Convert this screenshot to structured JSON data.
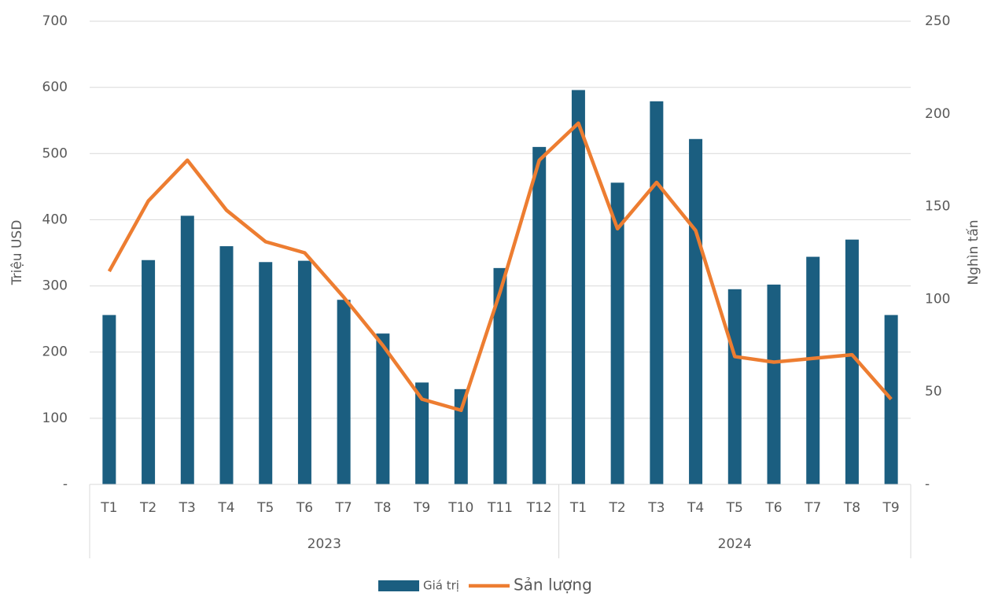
{
  "chart_data": {
    "type": "bar_line",
    "categories": [
      "T1",
      "T2",
      "T3",
      "T4",
      "T5",
      "T6",
      "T7",
      "T8",
      "T9",
      "T10",
      "T11",
      "T12",
      "T1",
      "T2",
      "T3",
      "T4",
      "T5",
      "T6",
      "T7",
      "T8",
      "T9"
    ],
    "groups": [
      {
        "label": "2023",
        "size": 12
      },
      {
        "label": "2024",
        "size": 9
      }
    ],
    "ylabel": "Triệu USD",
    "y2label": "Nghìn tấn",
    "ylim": [
      0,
      700
    ],
    "yticks": [
      {
        "value": 0,
        "label": "-"
      },
      100,
      200,
      300,
      400,
      500,
      600,
      700
    ],
    "y2lim": [
      0,
      250
    ],
    "y2ticks": [
      {
        "value": 0,
        "label": "-"
      },
      50,
      100,
      150,
      200,
      250
    ],
    "grid": true,
    "legend": "bottom",
    "series": [
      {
        "name": "Giá trị",
        "type": "bar",
        "color": "#1b5e80",
        "values": [
          256,
          339,
          406,
          360,
          336,
          338,
          279,
          228,
          154,
          144,
          327,
          510,
          596,
          456,
          579,
          522,
          295,
          302,
          344,
          370,
          256
        ]
      },
      {
        "name": "Sản lượng",
        "type": "line",
        "axis": "y2",
        "color": "#ed7d31",
        "values": [
          115,
          153,
          175,
          148,
          131,
          125,
          101,
          75,
          46,
          40,
          104,
          175,
          195,
          138,
          163,
          137,
          69,
          66,
          68,
          70,
          46
        ]
      }
    ]
  }
}
